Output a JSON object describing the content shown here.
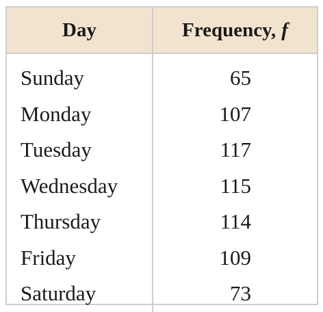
{
  "table": {
    "headers": {
      "day": "Day",
      "frequency": "Frequency,",
      "frequency_symbol": "f"
    },
    "rows": [
      {
        "day": "Sunday",
        "frequency": "65"
      },
      {
        "day": "Monday",
        "frequency": "107"
      },
      {
        "day": "Tuesday",
        "frequency": "117"
      },
      {
        "day": "Wednesday",
        "frequency": "115"
      },
      {
        "day": "Thursday",
        "frequency": "114"
      },
      {
        "day": "Friday",
        "frequency": "109"
      },
      {
        "day": "Saturday",
        "frequency": "73"
      }
    ],
    "colors": {
      "header_background": "#f2e3cf",
      "border": "#cdcdcd",
      "text": "#1a1a1a"
    }
  }
}
